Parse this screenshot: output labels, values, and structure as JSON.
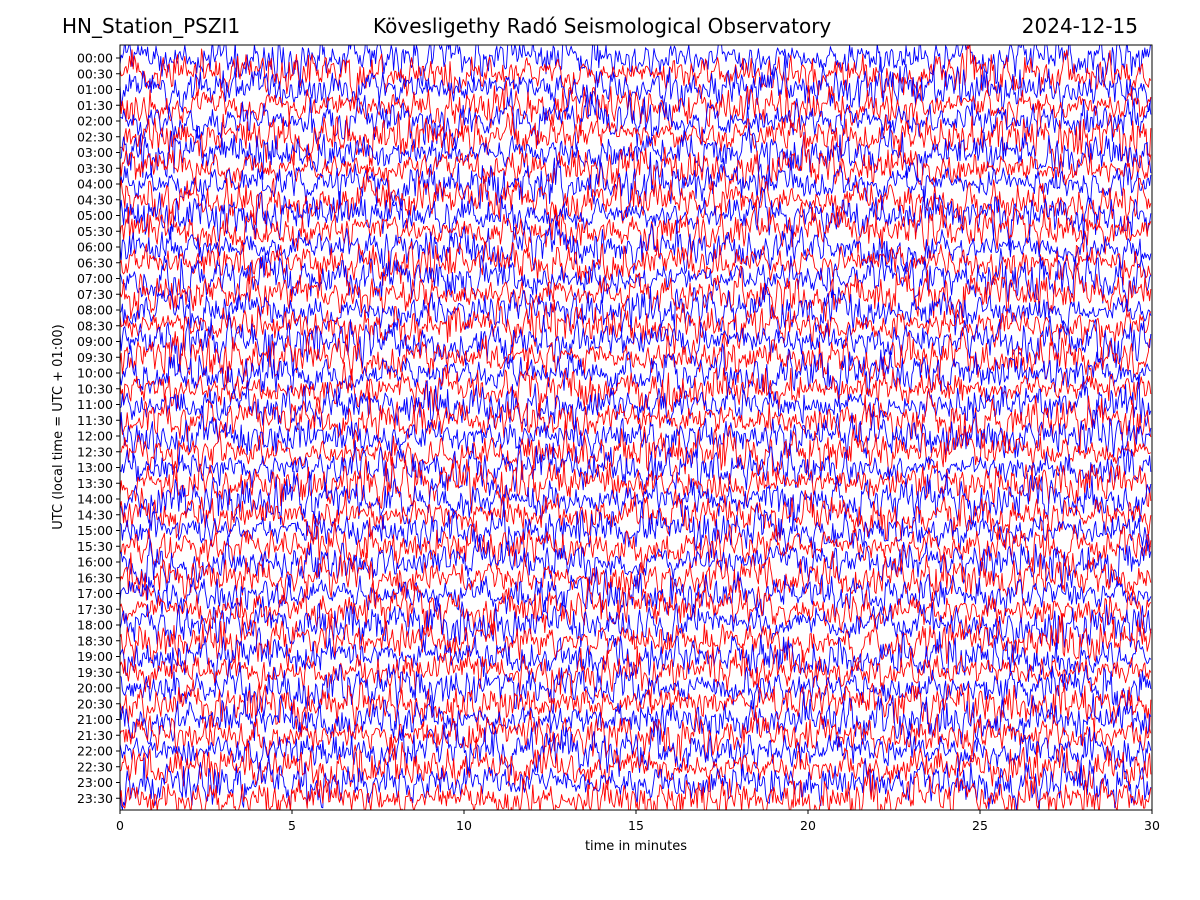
{
  "header": {
    "station": "HN_Station_PSZI1",
    "observatory": "Kövesligethy Radó Seismological Observatory",
    "date": "2024-12-15"
  },
  "chart_data": {
    "type": "line",
    "description_kind": "helicorder",
    "xlabel": "time in minutes",
    "ylabel": "UTC (local time = UTC + 01:00)",
    "xlim": [
      0,
      30
    ],
    "x_ticks": [
      0,
      5,
      10,
      15,
      20,
      25,
      30
    ],
    "y_ticks": [
      "00:00",
      "00:30",
      "01:00",
      "01:30",
      "02:00",
      "02:30",
      "03:00",
      "03:30",
      "04:00",
      "04:30",
      "05:00",
      "05:30",
      "06:00",
      "06:30",
      "07:00",
      "07:30",
      "08:00",
      "08:30",
      "09:00",
      "09:30",
      "10:00",
      "10:30",
      "11:00",
      "11:30",
      "12:00",
      "12:30",
      "13:00",
      "13:30",
      "14:00",
      "14:30",
      "15:00",
      "15:30",
      "16:00",
      "16:30",
      "17:00",
      "17:30",
      "18:00",
      "18:30",
      "19:00",
      "19:30",
      "20:00",
      "20:30",
      "21:00",
      "21:30",
      "22:00",
      "22:30",
      "23:00",
      "23:30"
    ],
    "trace_colors": [
      "#0000ff",
      "#ff0000"
    ],
    "grid": false
  }
}
